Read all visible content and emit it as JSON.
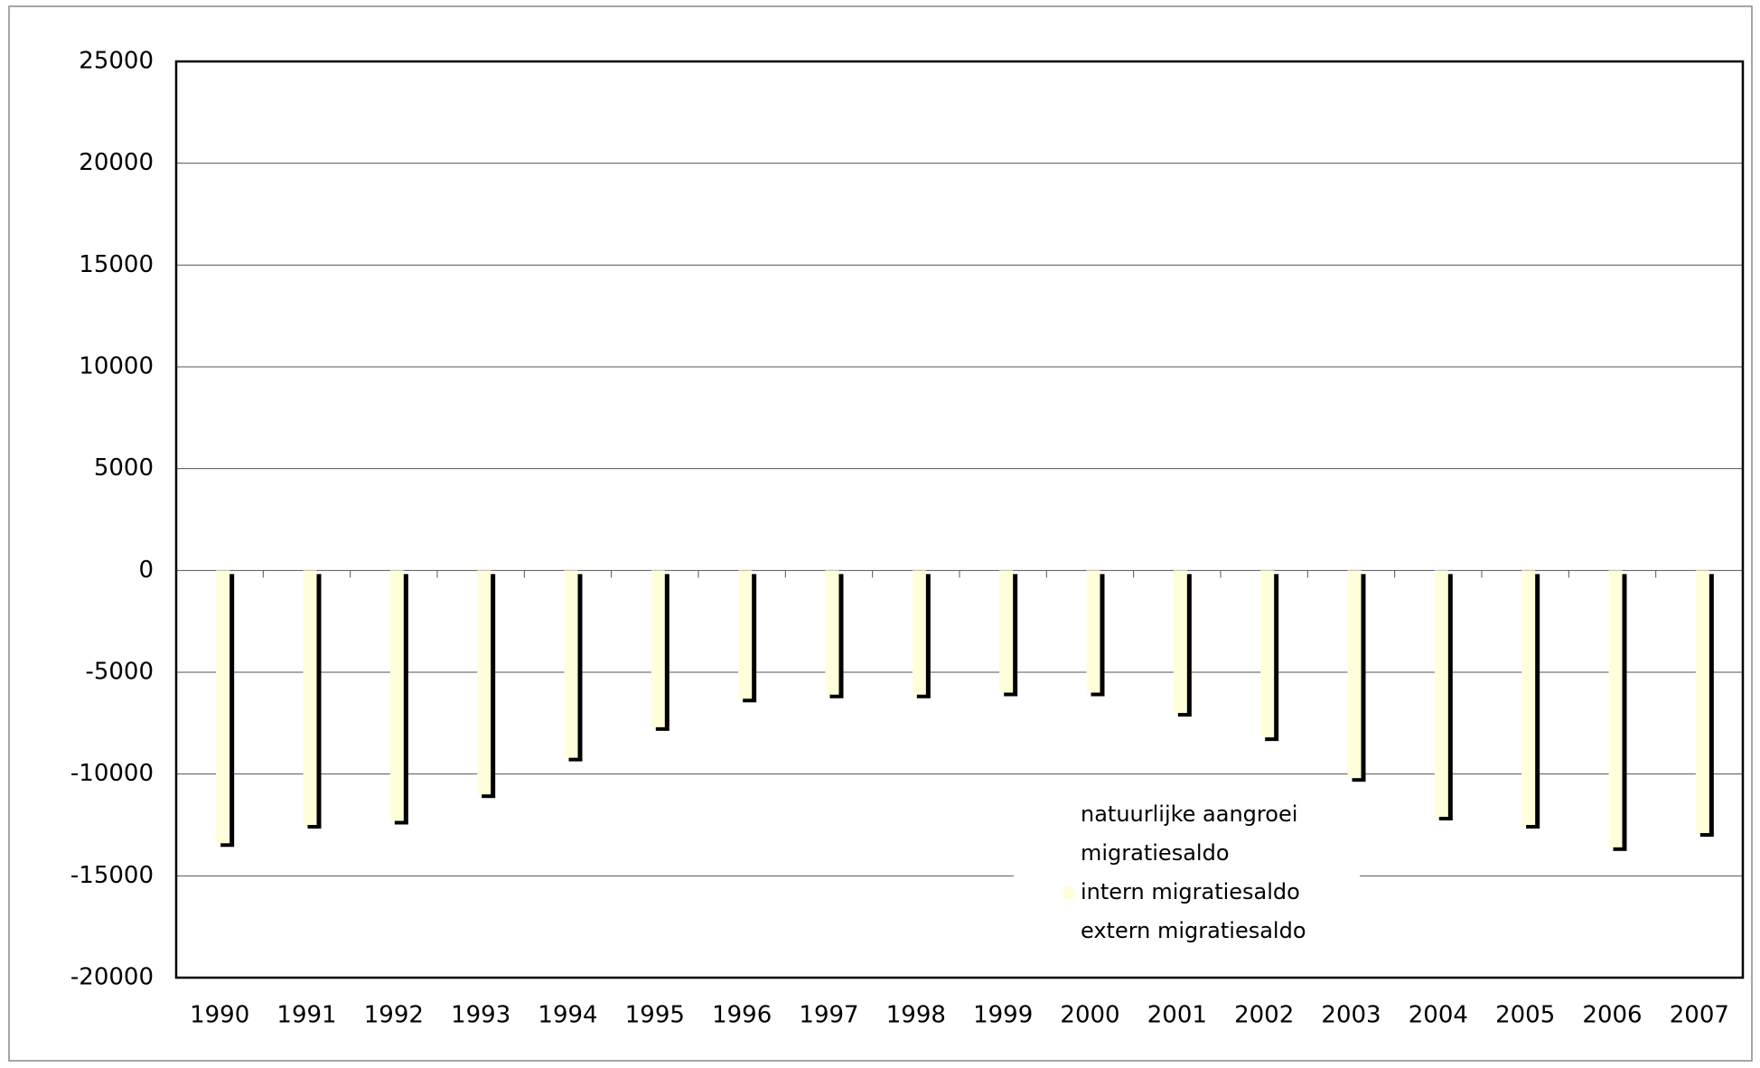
{
  "chart_data": {
    "type": "bar",
    "categories": [
      "1990",
      "1991",
      "1992",
      "1993",
      "1994",
      "1995",
      "1996",
      "1997",
      "1998",
      "1999",
      "2000",
      "2001",
      "2002",
      "2003",
      "2004",
      "2005",
      "2006",
      "2007"
    ],
    "series": [
      {
        "name": "natuurlijke aangroei",
        "color": "#ffffff",
        "values": [
          null,
          null,
          null,
          null,
          null,
          null,
          null,
          null,
          null,
          null,
          null,
          null,
          null,
          null,
          null,
          null,
          null,
          null
        ]
      },
      {
        "name": "migratiesaldo",
        "color": "#ffffff",
        "values": [
          null,
          null,
          null,
          null,
          null,
          null,
          null,
          null,
          null,
          null,
          null,
          null,
          null,
          null,
          null,
          null,
          null,
          null
        ]
      },
      {
        "name": "intern migratiesaldo",
        "color": "#ffffdc",
        "values": [
          -13400,
          -12500,
          -12300,
          -11000,
          -9200,
          -7700,
          -6300,
          -6100,
          -6100,
          -6000,
          -6000,
          -7000,
          -8200,
          -10200,
          -12100,
          -12500,
          -13600,
          -12900
        ]
      },
      {
        "name": "extern migratiesaldo",
        "color": "#ffffff",
        "values": [
          null,
          null,
          null,
          null,
          null,
          null,
          null,
          null,
          null,
          null,
          null,
          null,
          null,
          null,
          null,
          null,
          null,
          null
        ]
      }
    ],
    "ylim": [
      -20000,
      25000
    ],
    "yticks": [
      -20000,
      -15000,
      -10000,
      -5000,
      0,
      5000,
      10000,
      15000,
      20000,
      25000
    ],
    "grid": true
  }
}
